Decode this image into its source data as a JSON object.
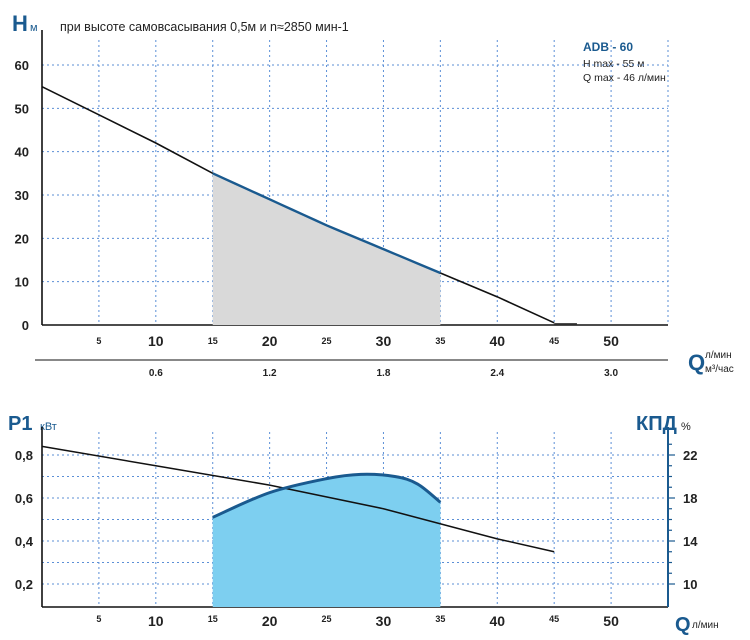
{
  "chart_data": [
    {
      "type": "line",
      "y_label": "H",
      "y_unit": "м",
      "subtitle": "при высоте самовсасывания 0,5м и n≈2850 мин-1",
      "model_box": {
        "model": "ADB - 60",
        "h_max": "H   max - 55 м",
        "q_max": "Q   max - 46 л/мин"
      },
      "x_label": "Q",
      "x_unit_top": "л/мин",
      "x_unit_bottom": "м³/час",
      "x_ticks_big": [
        "10",
        "20",
        "30",
        "40",
        "50"
      ],
      "x_ticks_small": [
        "5",
        "15",
        "25",
        "35",
        "45"
      ],
      "x_ticks_m3h": [
        "0.6",
        "1.2",
        "1.8",
        "2.4",
        "3.0"
      ],
      "y_ticks": [
        "0",
        "10",
        "20",
        "30",
        "40",
        "50",
        "60"
      ],
      "xlim": [
        0,
        55
      ],
      "ylim": [
        0,
        60
      ],
      "series": [
        {
          "values": [
            [
              0,
              55
            ],
            [
              5,
              48.5
            ],
            [
              10,
              42
            ],
            [
              15,
              35
            ],
            [
              20,
              29
            ],
            [
              25,
              23
            ],
            [
              30,
              17.5
            ],
            [
              35,
              12
            ],
            [
              40,
              6.5
            ],
            [
              45,
              0.5
            ]
          ]
        }
      ],
      "working_range": [
        15,
        35
      ],
      "grid": true
    },
    {
      "type": "line",
      "y_label": "P1",
      "y_unit": "кВт",
      "y2_label": "КПД",
      "y2_unit": "%",
      "x_label": "Q",
      "x_unit": "л/мин",
      "x_ticks_big": [
        "10",
        "20",
        "30",
        "40",
        "50"
      ],
      "x_ticks_small": [
        "5",
        "15",
        "25",
        "35",
        "45"
      ],
      "y_ticks": [
        "0,2",
        "0,4",
        "0,6",
        "0,8"
      ],
      "y2_ticks": [
        "10",
        "14",
        "18",
        "22"
      ],
      "xlim": [
        0,
        55
      ],
      "ylim": [
        0.1,
        0.9
      ],
      "y2lim": [
        8.5,
        24
      ],
      "series": [
        {
          "values": [
            [
              0,
              0.84
            ],
            [
              10,
              0.75
            ],
            [
              20,
              0.66
            ],
            [
              30,
              0.55
            ],
            [
              40,
              0.41
            ],
            [
              45,
              0.35
            ]
          ]
        },
        {
          "axis": "right",
          "values": [
            [
              15,
              16.2
            ],
            [
              20,
              18.5
            ],
            [
              25,
              19.8
            ],
            [
              28,
              20.2
            ],
            [
              31,
              20.0
            ],
            [
              33,
              19.3
            ],
            [
              35,
              17.6
            ]
          ]
        }
      ],
      "grid": true
    }
  ],
  "colors": {
    "blue_dark": "#1a5a8f",
    "fill_grey": "#d9d9d9",
    "fill_blue": "#7dcff0",
    "grid": "#5b8fd6"
  }
}
